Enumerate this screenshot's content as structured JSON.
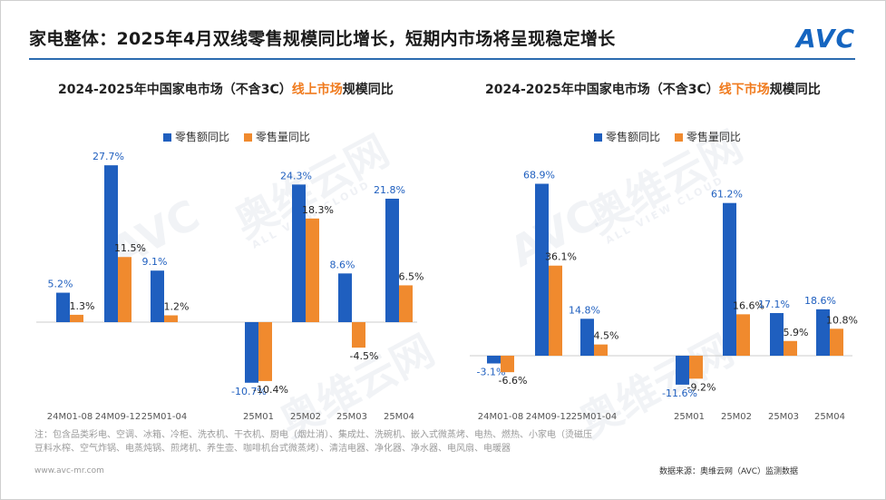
{
  "header": {
    "title": "家电整体：2025年4月双线零售规模同比增长，短期内市场将呈现稳定增长",
    "logo": "AVC"
  },
  "watermark": {
    "text": "奥维云网",
    "sub": "ALL VIEW CLOUD",
    "logo": "AVC"
  },
  "chart_data": [
    {
      "type": "bar",
      "title_prefix": "2024-2025年中国家电市场（不含3C）",
      "title_highlight": "线上市场",
      "title_suffix": "规模同比",
      "categories": [
        "24M01-08",
        "24M09-12",
        "25M01-04",
        "25M01",
        "25M02",
        "25M03",
        "25M04"
      ],
      "series": [
        {
          "name": "零售额同比",
          "color": "#1f5fbf",
          "values": [
            5.2,
            27.7,
            9.1,
            -10.7,
            24.3,
            8.6,
            21.8
          ]
        },
        {
          "name": "零售量同比",
          "color": "#f08a2e",
          "values": [
            1.3,
            11.5,
            1.2,
            -10.4,
            18.3,
            -4.5,
            6.5
          ]
        }
      ],
      "ylim": [
        -12,
        30
      ],
      "grid": false,
      "legend_position": "top-center"
    },
    {
      "type": "bar",
      "title_prefix": "2024-2025年中国家电市场（不含3C）",
      "title_highlight": "线下市场",
      "title_suffix": "规模同比",
      "categories": [
        "24M01-08",
        "24M09-12",
        "25M01-04",
        "25M01",
        "25M02",
        "25M03",
        "25M04"
      ],
      "series": [
        {
          "name": "零售额同比",
          "color": "#1f5fbf",
          "values": [
            -3.1,
            68.9,
            14.8,
            -11.6,
            61.2,
            17.1,
            18.6
          ]
        },
        {
          "name": "零售量同比",
          "color": "#f08a2e",
          "values": [
            -6.6,
            36.1,
            4.5,
            -9.2,
            16.6,
            5.9,
            10.8
          ]
        }
      ],
      "ylim": [
        -15,
        75
      ],
      "grid": false,
      "legend_position": "top-center"
    }
  ],
  "footer": {
    "note": "注：包含品类彩电、空调、冰箱、冷柜、洗衣机、干衣机、厨电（烟灶消）、集成灶、洗碗机、嵌入式微蒸烤、电热、燃热、小家电（烫磁压豆料水榨、空气炸锅、电蒸炖锅、煎烤机、养生壶、咖啡机台式微蒸烤）、清洁电器、净化器、净水器、电风扇、电暖器",
    "website": "www.avc-mr.com",
    "source": "数据来源：奥维云网（AVC）监测数据"
  }
}
